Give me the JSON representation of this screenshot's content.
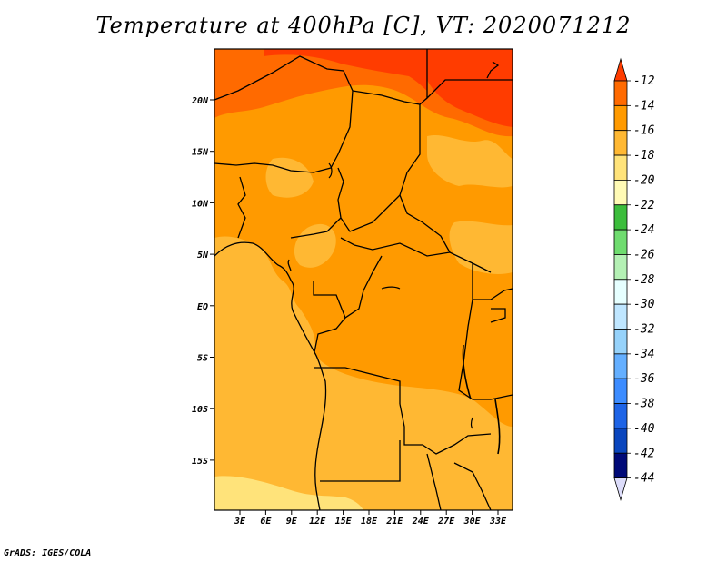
{
  "title": "Temperature at 400hPa [C], VT: 2020071212",
  "credit": "GrADS: IGES/COLA",
  "lat_labels": [
    "20N",
    "15N",
    "10N",
    "5N",
    "EQ",
    "5S",
    "10S",
    "15S"
  ],
  "lon_labels": [
    "3E",
    "6E",
    "9E",
    "12E",
    "15E",
    "18E",
    "21E",
    "24E",
    "27E",
    "30E",
    "33E"
  ],
  "colorbar": {
    "labels": [
      "-12",
      "-14",
      "-16",
      "-18",
      "-20",
      "-22",
      "-24",
      "-26",
      "-28",
      "-30",
      "-32",
      "-34",
      "-36",
      "-38",
      "-40",
      "-42",
      "-44"
    ],
    "colors": [
      "#ff3c00",
      "#ff6a00",
      "#ff9a00",
      "#ffb833",
      "#ffe37a",
      "#fffab5",
      "#3cbd3c",
      "#6fdc6f",
      "#b4f0b4",
      "#e6ffff",
      "#bfe6ff",
      "#96d2fa",
      "#64afff",
      "#3c8cff",
      "#1e64e6",
      "#0a46be",
      "#000a78",
      "#dcdcfa"
    ]
  },
  "field_colors": {
    "band_-12_-14": "#ff6a00",
    "band_-14_-16": "#ff9a00",
    "band_-16_-18": "#ffb833",
    "band_-18_-20": "#ffe37a",
    "band_above_-12": "#ff3c00"
  }
}
